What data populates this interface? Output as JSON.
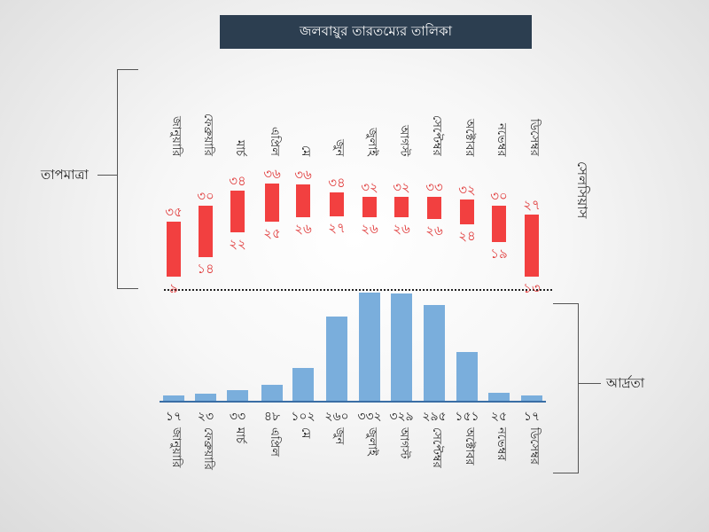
{
  "title": "জলবায়ুর তারতম্যের তালিকা",
  "colors": {
    "temp": "#f24040",
    "humidity": "#7aaedc",
    "title_bg": "#2c3e50"
  },
  "chart_data": [
    {
      "type": "bar",
      "subtype": "range",
      "title": "তাপমাত্রা",
      "ylabel": "সেলসিয়াস",
      "categories": [
        "জানুয়ারি",
        "ফেব্রুয়ারি",
        "মার্চ",
        "এপ্রিল",
        "মে",
        "জুন",
        "জুলাই",
        "আগস্ট",
        "সেপ্টেম্বর",
        "অক্টোবর",
        "নভেম্বর",
        "ডিসেম্বর"
      ],
      "max": [
        35,
        30,
        34,
        36,
        36,
        34,
        32,
        32,
        33,
        32,
        30,
        27
      ],
      "min": [
        9,
        14,
        22,
        25,
        26,
        27,
        26,
        26,
        26,
        24,
        19,
        13
      ],
      "max_labels": [
        "৩৫",
        "৩০",
        "৩৪",
        "৩৬",
        "৩৬",
        "৩৪",
        "৩২",
        "৩২",
        "৩৩",
        "৩২",
        "৩০",
        "২৭"
      ],
      "min_labels": [
        "৯",
        "১৪",
        "২২",
        "২৫",
        "২৬",
        "২৭",
        "২৬",
        "২৬",
        "২৬",
        "২৪",
        "১৯",
        "১৩"
      ]
    },
    {
      "type": "bar",
      "title": "আর্দ্রতা",
      "categories": [
        "জানুয়ারি",
        "ফেব্রুয়ারি",
        "মার্চ",
        "এপ্রিল",
        "মে",
        "জুন",
        "জুলাই",
        "আগস্ট",
        "সেপ্টেম্বর",
        "অক্টোবর",
        "নভেম্বর",
        "ডিসেম্বর"
      ],
      "values": [
        17,
        23,
        33,
        48,
        102,
        260,
        332,
        329,
        295,
        151,
        25,
        17
      ],
      "value_labels": [
        "১৭",
        "২৩",
        "৩৩",
        "৪৮",
        "১০২",
        "২৬০",
        "৩৩২",
        "৩২৯",
        "২৯৫",
        "১৫১",
        "২৫",
        "১৭"
      ]
    }
  ]
}
